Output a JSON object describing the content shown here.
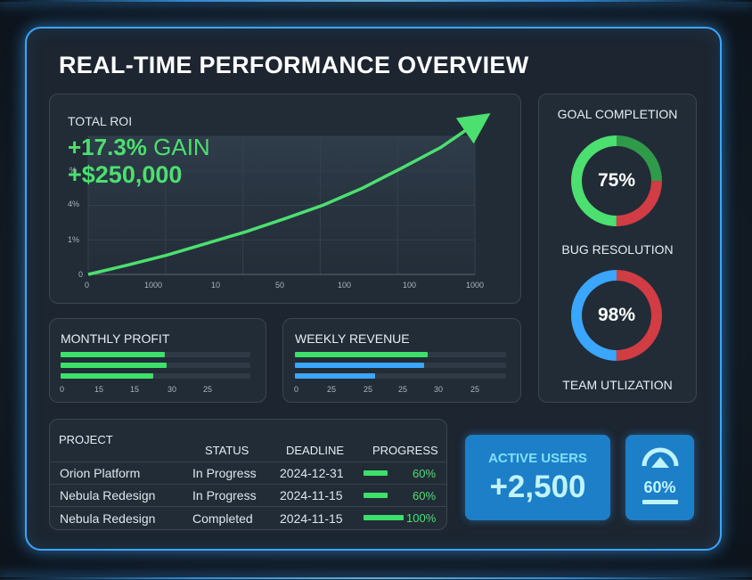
{
  "header": {
    "title": "REAL-TIME PERFORMANCE OVERVIEW"
  },
  "roi": {
    "label": "TOTAL ROI",
    "gain_value": "+17.3%",
    "gain_word": "GAIN",
    "amount": "+$250,000",
    "y_ticks": [
      "0",
      "1%",
      "4%",
      "%"
    ],
    "x_ticks": [
      "0",
      "1000",
      "10",
      "50",
      "100",
      "100",
      "1000"
    ]
  },
  "chart_data": {
    "type": "line",
    "title": "TOTAL ROI",
    "x_ticks": [
      "0",
      "1000",
      "10",
      "50",
      "100",
      "100",
      "1000"
    ],
    "y_ticks": [
      "0",
      "1%",
      "4%",
      "%"
    ],
    "series": [
      {
        "values": [
          0,
          12,
          25,
          40,
          55,
          72,
          90,
          112,
          138,
          165,
          200
        ]
      }
    ]
  },
  "goal_completion": {
    "label": "GOAL COMPLETION",
    "value": "75%",
    "colors": [
      "#4be06f",
      "#2f9a4a",
      "#d23c44"
    ]
  },
  "bug_resolution": {
    "label": "BUG RESOLUTION",
    "value": "98%",
    "colors": [
      "#3aa6ff",
      "#d23c44"
    ]
  },
  "team_utilization": {
    "label": "TEAM UTLIZATION"
  },
  "monthly_profit": {
    "title": "MONTHLY PROFIT",
    "bars": [
      0.55,
      0.56,
      0.49
    ],
    "ticks": [
      "0",
      "15",
      "15",
      "30",
      "25"
    ]
  },
  "weekly_revenue": {
    "title": "WEEKLY REVENUE",
    "bars": [
      0.63,
      0.61,
      0.38
    ],
    "colors": [
      "#3de06a",
      "#3aa6ff",
      "#3aa6ff"
    ],
    "ticks": [
      "0",
      "25",
      "25",
      "25",
      "30",
      "25"
    ]
  },
  "projects": {
    "headers": [
      "PROJECT",
      "STATUS",
      "DEADLINE",
      "PROGRESS"
    ],
    "rows": [
      {
        "name": "Orion Platform",
        "status": "In Progress",
        "deadline": "2024-12-31",
        "progress": "60%",
        "fill": 0.6
      },
      {
        "name": "Nebula Redesign",
        "status": "In Progress",
        "deadline": "2024-11-15",
        "progress": "60%",
        "fill": 0.6
      },
      {
        "name": "Nebula Redesign",
        "status": "Completed",
        "deadline": "2024-11-15",
        "progress": "100%",
        "fill": 1.0
      }
    ]
  },
  "active_users": {
    "label": "ACTIVE USERS",
    "value": "+2,500"
  },
  "utilization_card": {
    "value": "60%",
    "icon": "gauge-icon"
  }
}
